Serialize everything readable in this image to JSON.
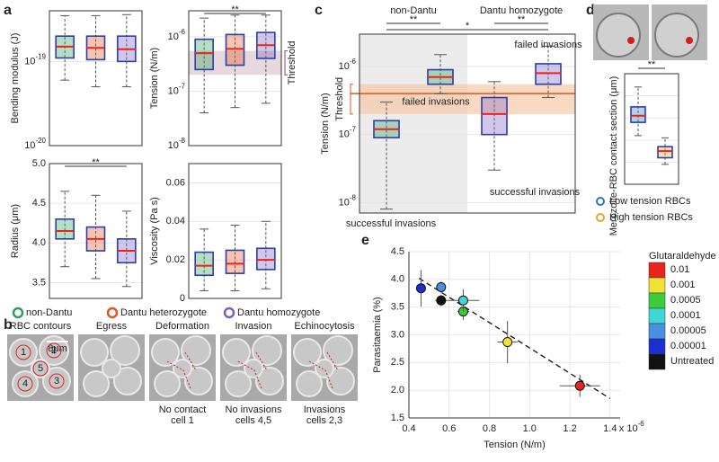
{
  "panel_labels": [
    "a",
    "b",
    "c",
    "d",
    "e"
  ],
  "panel_a_legend": {
    "entries": [
      {
        "name": "non-Dantu",
        "color": "#2e9e5b"
      },
      {
        "name": "Dantu heterozygote",
        "color": "#e0541f"
      },
      {
        "name": "Dantu homozygote",
        "color": "#7b5fc4"
      }
    ]
  },
  "panel_b": {
    "frames": [
      {
        "title": "RBC contours",
        "captions": []
      },
      {
        "title": "Egress",
        "captions": []
      },
      {
        "title": "Deformation",
        "captions": [
          "No contact",
          "cell 1"
        ]
      },
      {
        "title": "Invasion",
        "captions": [
          "No invasions",
          "cells 4,5"
        ]
      },
      {
        "title": "Echinocytosis",
        "captions": [
          "Invasions",
          "cells 2,3"
        ]
      }
    ],
    "scale_bar": "8μm",
    "cell_numbers": [
      "1",
      "2",
      "3",
      "4",
      "5"
    ]
  },
  "chart_data": [
    {
      "type": "box",
      "y_label": "Bending modulus (J)",
      "log_y": true,
      "grid": true,
      "ylim": [
        1e-20,
        4e-19
      ],
      "yticks": [
        {
          "value": 1e-20,
          "label": "10-20"
        },
        {
          "value": 1e-19,
          "label": "10-19"
        }
      ],
      "boxes": [
        {
          "color": "#2e9e5b",
          "whisker_low": 6e-20,
          "q1": 1.1e-19,
          "median": 1.5e-19,
          "q3": 2e-19,
          "whisker_high": 3.5e-19
        },
        {
          "color": "#e0541f",
          "whisker_low": 5e-20,
          "q1": 1.05e-19,
          "median": 1.45e-19,
          "q3": 2e-19,
          "whisker_high": 3.5e-19
        },
        {
          "color": "#7b5fc4",
          "whisker_low": 5e-20,
          "q1": 1e-19,
          "median": 1.4e-19,
          "q3": 2e-19,
          "whisker_high": 3.6e-19
        }
      ]
    },
    {
      "type": "box",
      "y_label": "Tension (N/m)",
      "log_y": true,
      "grid": true,
      "ylim": [
        1e-08,
        3e-06
      ],
      "yticks": [
        {
          "value": 1e-08,
          "label": "10-8"
        },
        {
          "value": 1e-07,
          "label": "10-7"
        },
        {
          "value": 1e-06,
          "label": "10-6"
        }
      ],
      "threshold_band": [
        2e-07,
        5.5e-07
      ],
      "threshold_label": "Threshold",
      "significance": [
        {
          "label": "**",
          "from": 0,
          "to": 2
        }
      ],
      "boxes": [
        {
          "color": "#2e9e5b",
          "whisker_low": 4e-08,
          "q1": 2.5e-07,
          "median": 5e-07,
          "q3": 9e-07,
          "whisker_high": 2.2e-06
        },
        {
          "color": "#e0541f",
          "whisker_low": 5e-08,
          "q1": 3e-07,
          "median": 6e-07,
          "q3": 1.1e-06,
          "whisker_high": 2.5e-06
        },
        {
          "color": "#7b5fc4",
          "whisker_low": 6e-08,
          "q1": 4e-07,
          "median": 7e-07,
          "q3": 1.2e-06,
          "whisker_high": 2.5e-06
        }
      ]
    },
    {
      "type": "box",
      "y_label": "Radius (μm)",
      "log_y": false,
      "grid": true,
      "ylim": [
        3.3,
        5.0
      ],
      "yticks": [
        3.5,
        {
          "value": 4,
          "label": "4.0"
        },
        4.5,
        {
          "value": 5,
          "label": "5.0"
        }
      ],
      "significance": [
        {
          "label": "**",
          "from": 0,
          "to": 2
        }
      ],
      "boxes": [
        {
          "color": "#2e9e5b",
          "whisker_low": 3.7,
          "q1": 4.05,
          "median": 4.15,
          "q3": 4.3,
          "whisker_high": 4.65
        },
        {
          "color": "#e0541f",
          "whisker_low": 3.55,
          "q1": 3.9,
          "median": 4.05,
          "q3": 4.2,
          "whisker_high": 4.6
        },
        {
          "color": "#7b5fc4",
          "whisker_low": 3.45,
          "q1": 3.75,
          "median": 3.9,
          "q3": 4.05,
          "whisker_high": 4.4
        }
      ]
    },
    {
      "type": "box",
      "y_label": "Viscosity (Pa s)",
      "log_y": false,
      "grid": true,
      "ylim": [
        0,
        0.07
      ],
      "yticks": [
        0,
        0.02,
        0.04,
        0.06
      ],
      "boxes": [
        {
          "color": "#2e9e5b",
          "whisker_low": 0.004,
          "q1": 0.012,
          "median": 0.017,
          "q3": 0.024,
          "whisker_high": 0.036
        },
        {
          "color": "#e0541f",
          "whisker_low": 0.004,
          "q1": 0.013,
          "median": 0.018,
          "q3": 0.025,
          "whisker_high": 0.038
        },
        {
          "color": "#7b5fc4",
          "whisker_low": 0.005,
          "q1": 0.015,
          "median": 0.02,
          "q3": 0.026,
          "whisker_high": 0.04
        }
      ]
    },
    {
      "type": "box",
      "y_label": "Tension (N/m)",
      "log_y": true,
      "grid": true,
      "ylim": [
        7e-09,
        3e-06
      ],
      "yticks": [
        {
          "value": 1e-08,
          "label": "10-8"
        },
        {
          "value": 1e-07,
          "label": "10-7"
        },
        {
          "value": 1e-06,
          "label": "10-6"
        }
      ],
      "groups": [
        "non-Dantu",
        "Dantu homozygote"
      ],
      "threshold": 4e-07,
      "threshold_band": [
        2e-07,
        5.5e-07
      ],
      "threshold_label": "Threshold",
      "significance": [
        {
          "label": "**",
          "from": 0,
          "to": 1
        },
        {
          "label": "*",
          "from": 0,
          "to": 3
        },
        {
          "label": "**",
          "from": 2,
          "to": 3
        }
      ],
      "boxes": [
        {
          "color": "#2e9e5b",
          "outcome": "successful invasions",
          "whisker_low": 8e-09,
          "q1": 9e-08,
          "median": 1.2e-07,
          "q3": 1.6e-07,
          "whisker_high": 3e-07
        },
        {
          "color": "#2e9e5b",
          "outcome": "failed invasions",
          "whisker_low": 4e-07,
          "q1": 5.5e-07,
          "median": 7e-07,
          "q3": 9e-07,
          "whisker_high": 1.5e-06
        },
        {
          "color": "#7b5fc4",
          "outcome": "successful invasions",
          "whisker_low": 3e-08,
          "q1": 1e-07,
          "median": 2e-07,
          "q3": 3.5e-07,
          "whisker_high": 6e-07
        },
        {
          "color": "#7b5fc4",
          "outcome": "failed invasions",
          "whisker_low": 3.5e-07,
          "q1": 5.5e-07,
          "median": 8e-07,
          "q3": 1.1e-06,
          "whisker_high": 2e-06
        }
      ]
    },
    {
      "type": "box",
      "y_label": "Merozoite-RBC contact section (μm)",
      "log_y": false,
      "grid": true,
      "ylim": [
        0,
        5
      ],
      "yticks": [],
      "significance": [
        {
          "label": "**",
          "from": 0,
          "to": 1
        }
      ],
      "boxes": [
        {
          "name": "Low tension RBCs",
          "color": "#2a7ab8",
          "whisker_low": 2.2,
          "q1": 2.8,
          "median": 3.1,
          "q3": 3.5,
          "whisker_high": 4.4
        },
        {
          "name": "High tension RBCs",
          "color": "#e0a82e",
          "whisker_low": 0.9,
          "q1": 1.2,
          "median": 1.5,
          "q3": 1.7,
          "whisker_high": 2.1
        }
      ]
    },
    {
      "type": "scatter",
      "x_label": "Tension (N/m)",
      "y_label": "Parasitaemia (%)",
      "grid": true,
      "x_multiplier": "x 10-6",
      "legend_title": "Glutaraldehyde (%)",
      "xlim": [
        0.4,
        1.45
      ],
      "ylim": [
        1.5,
        4.5
      ],
      "xticks": [
        0.4,
        0.6,
        0.8,
        {
          "value": 1,
          "label": "1.0"
        },
        1.2,
        1.4
      ],
      "yticks": [
        1.5,
        {
          "value": 2,
          "label": "2.0"
        },
        2.5,
        {
          "value": 3,
          "label": "3.0"
        },
        3.5,
        {
          "value": 4,
          "label": "4.0"
        },
        4.5
      ],
      "fit_line": {
        "x": [
          0.45,
          1.4
        ],
        "y": [
          4.02,
          1.85
        ]
      },
      "series": [
        {
          "name": "0.01",
          "color": "#e8241c",
          "x": [
            1.25
          ],
          "values": [
            2.08
          ],
          "x_errors": [
            0.1
          ],
          "y_errors": [
            0.2
          ]
        },
        {
          "name": "0.001",
          "color": "#f2e234",
          "x": [
            0.89
          ],
          "values": [
            2.87
          ],
          "x_errors": [
            0.05
          ],
          "y_errors": [
            0.38
          ]
        },
        {
          "name": "0.0005",
          "color": "#3ccc3c",
          "x": [
            0.67
          ],
          "values": [
            3.42
          ],
          "x_errors": [
            0.03
          ],
          "y_errors": [
            0.15
          ]
        },
        {
          "name": "0.0001",
          "color": "#3fd6d6",
          "x": [
            0.67
          ],
          "values": [
            3.62
          ],
          "x_errors": [
            0.08
          ],
          "y_errors": [
            0.2
          ]
        },
        {
          "name": "0.00005",
          "color": "#4a90e0",
          "x": [
            0.56
          ],
          "values": [
            3.86
          ],
          "x_errors": [
            0.02
          ],
          "y_errors": [
            0.1
          ]
        },
        {
          "name": "0.00001",
          "color": "#1a2fd0",
          "x": [
            0.46
          ],
          "values": [
            3.84
          ],
          "x_errors": [
            0.02
          ],
          "y_errors": [
            0.33
          ]
        },
        {
          "name": "Untreated",
          "color": "#111111",
          "x": [
            0.56
          ],
          "values": [
            3.62
          ],
          "x_errors": [
            0.03
          ],
          "y_errors": [
            0.1
          ]
        }
      ]
    }
  ]
}
